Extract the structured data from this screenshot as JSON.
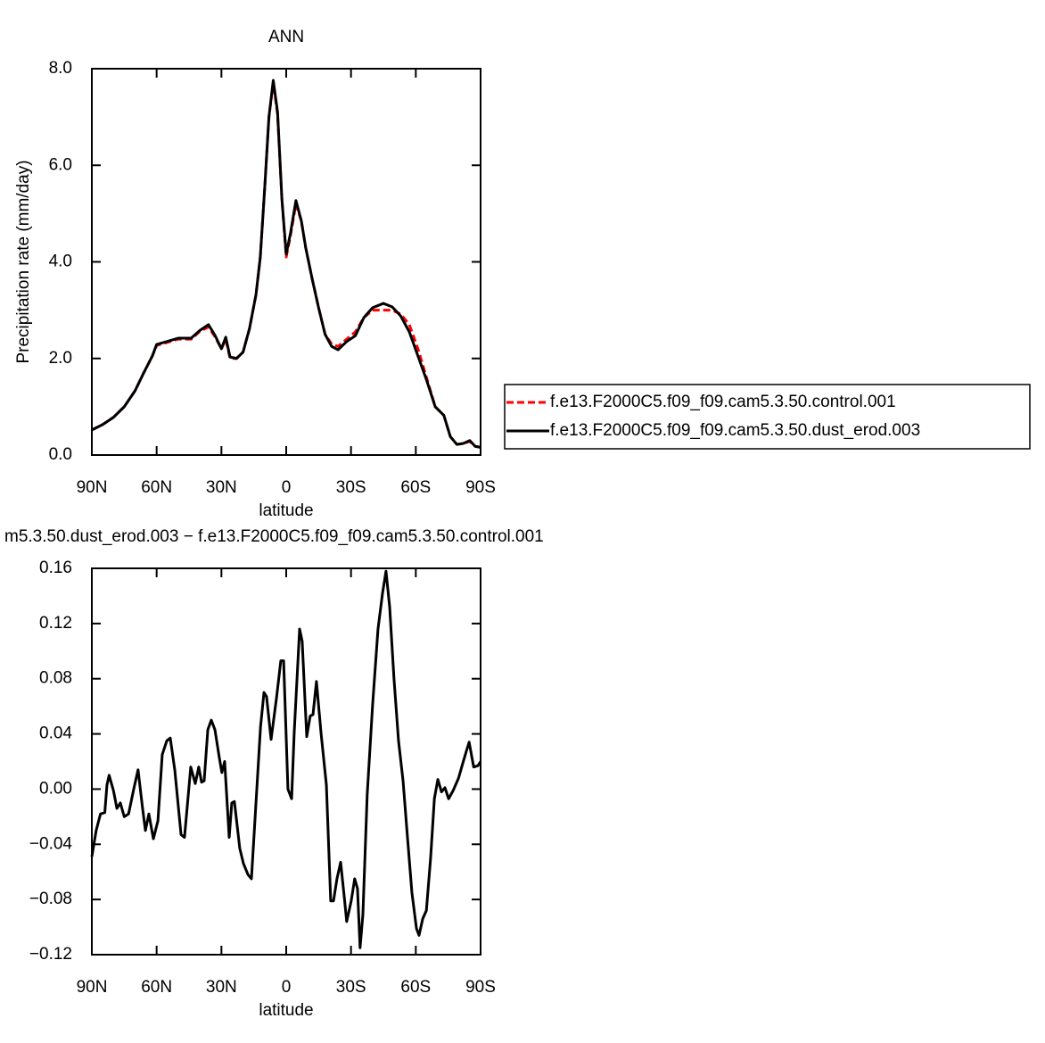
{
  "chart_data": [
    {
      "type": "line",
      "title": "ANN",
      "x_label": "latitude",
      "y_label": "Precipitation rate (mm/day)",
      "x": [
        90,
        85,
        80,
        75,
        70,
        66,
        62,
        60,
        56,
        50,
        44,
        40,
        36,
        33,
        30,
        28,
        26,
        23,
        20,
        17,
        14,
        12,
        10,
        8,
        6,
        4,
        2,
        0,
        -2,
        -4.5,
        -7,
        -9,
        -12,
        -15,
        -18,
        -21,
        -24,
        -28,
        -32,
        -36,
        -40,
        -45,
        -49,
        -53,
        -57,
        -61,
        -65,
        -69,
        -73,
        -76,
        -79,
        -82,
        -85,
        -87.5,
        -90
      ],
      "series": [
        {
          "name": "f.e13.F2000C5.f09_f09.cam5.3.50.control.001",
          "color": "#ff0000",
          "dashed": true,
          "values": [
            0.52,
            0.63,
            0.78,
            1.0,
            1.33,
            1.7,
            2.05,
            2.27,
            2.32,
            2.4,
            2.4,
            2.56,
            2.65,
            2.45,
            2.2,
            2.4,
            2.0,
            2.0,
            2.13,
            2.62,
            3.32,
            4.1,
            5.5,
            7.0,
            7.72,
            7.05,
            5.3,
            4.1,
            4.55,
            5.2,
            4.85,
            4.3,
            3.65,
            3.05,
            2.5,
            2.3,
            2.25,
            2.4,
            2.55,
            2.85,
            3.0,
            3.0,
            3.0,
            2.92,
            2.7,
            2.2,
            1.6,
            1.0,
            0.82,
            0.38,
            0.22,
            0.24,
            0.28,
            0.18,
            0.16
          ]
        },
        {
          "name": "f.e13.F2000C5.f09_f09.cam5.3.50.dust_erod.003",
          "color": "#000000",
          "dashed": false,
          "values": [
            0.52,
            0.63,
            0.78,
            1.0,
            1.33,
            1.7,
            2.05,
            2.29,
            2.34,
            2.42,
            2.42,
            2.58,
            2.7,
            2.48,
            2.2,
            2.44,
            2.03,
            2.0,
            2.13,
            2.62,
            3.32,
            4.1,
            5.5,
            7.0,
            7.76,
            7.1,
            5.3,
            4.16,
            4.6,
            5.27,
            4.85,
            4.3,
            3.65,
            3.05,
            2.5,
            2.25,
            2.18,
            2.35,
            2.47,
            2.85,
            3.05,
            3.14,
            3.07,
            2.88,
            2.55,
            2.05,
            1.55,
            1.0,
            0.82,
            0.38,
            0.22,
            0.24,
            0.3,
            0.18,
            0.16
          ]
        }
      ],
      "xlim": [
        90,
        -90
      ],
      "xticks": [
        {
          "value": 90,
          "label": "90N"
        },
        {
          "value": 60,
          "label": "60N"
        },
        {
          "value": 30,
          "label": "30N"
        },
        0,
        {
          "value": -30,
          "label": "30S"
        },
        {
          "value": -60,
          "label": "60S"
        },
        {
          "value": -90,
          "label": "90S"
        }
      ],
      "ylim": [
        0,
        8
      ],
      "yticks": [
        {
          "value": 0,
          "label": "0.0"
        },
        {
          "value": 2,
          "label": "2.0"
        },
        {
          "value": 4,
          "label": "4.0"
        },
        {
          "value": 6,
          "label": "6.0"
        },
        {
          "value": 8,
          "label": "8.0"
        }
      ],
      "legend": "right"
    },
    {
      "type": "line",
      "title": "m5.3.50.dust_erod.003 − f.e13.F2000C5.f09_f09.cam5.3.50.control.001",
      "x_label": "latitude",
      "x": [
        90,
        88,
        86,
        84,
        83,
        82,
        80,
        78.4,
        76.8,
        75,
        73,
        70.6,
        68.6,
        66.5,
        65.2,
        63.6,
        61.5,
        59.4,
        57.4,
        55.3,
        53.7,
        51.6,
        48.7,
        47.1,
        44.2,
        42.1,
        40.5,
        39.2,
        38,
        36.3,
        34.7,
        33,
        31,
        29.8,
        28.5,
        26.4,
        25.2,
        24,
        21.5,
        19.8,
        17.7,
        16.1,
        14,
        11.9,
        10.3,
        9.1,
        7,
        4.5,
        2.5,
        1.2,
        -0.8,
        -2.5,
        -3.7,
        -6.2,
        -7.4,
        -9.5,
        -11.1,
        -12.4,
        -14,
        -16.1,
        -18.6,
        -20.6,
        -21.9,
        -23.5,
        -25.2,
        -26.8,
        -28,
        -30.1,
        -31.7,
        -33,
        -34.2,
        -35.5,
        -37.5,
        -40,
        -42.5,
        -44.6,
        -46.2,
        -47.9,
        -49.9,
        -52,
        -54.1,
        -56.2,
        -58.2,
        -60.3,
        -61.5,
        -63.2,
        -64.9,
        -66.9,
        -68.6,
        -70.2,
        -71.9,
        -73.5,
        -75.2,
        -77.3,
        -79.8,
        -81.8,
        -83.5,
        -84.7,
        -86.8,
        -88.8,
        -90
      ],
      "series": [
        {
          "color": "#000000",
          "dashed": false,
          "values": [
            -0.049,
            -0.03,
            -0.018,
            -0.017,
            0.003,
            0.01,
            -0.001,
            -0.014,
            -0.01,
            -0.02,
            -0.018,
            0,
            0.014,
            -0.014,
            -0.03,
            -0.018,
            -0.036,
            -0.023,
            0.025,
            0.035,
            0.037,
            0.014,
            -0.033,
            -0.035,
            0.016,
            0.004,
            0.016,
            0.005,
            0.006,
            0.043,
            0.05,
            0.043,
            0.023,
            0.012,
            0.02,
            -0.035,
            -0.01,
            -0.009,
            -0.043,
            -0.054,
            -0.062,
            -0.065,
            -0.01,
            0.045,
            0.07,
            0.067,
            0.036,
            0.066,
            0.093,
            0.093,
            0,
            -0.007,
            0.041,
            0.116,
            0.107,
            0.038,
            0.053,
            0.054,
            0.078,
            0.041,
            0.003,
            -0.081,
            -0.081,
            -0.065,
            -0.053,
            -0.077,
            -0.096,
            -0.081,
            -0.065,
            -0.072,
            -0.115,
            -0.091,
            -0.004,
            0.061,
            0.116,
            0.142,
            0.158,
            0.132,
            0.08,
            0.035,
            0.006,
            -0.036,
            -0.075,
            -0.101,
            -0.106,
            -0.094,
            -0.088,
            -0.049,
            -0.007,
            0.007,
            -0.002,
            0.001,
            -0.007,
            -0.001,
            0.008,
            0.019,
            0.028,
            0.034,
            0.016,
            0.017,
            0.02
          ]
        }
      ],
      "xlim": [
        90,
        -90
      ],
      "xticks": [
        {
          "value": 90,
          "label": "90N"
        },
        {
          "value": 60,
          "label": "60N"
        },
        {
          "value": 30,
          "label": "30N"
        },
        0,
        {
          "value": -30,
          "label": "30S"
        },
        {
          "value": -60,
          "label": "60S"
        },
        {
          "value": -90,
          "label": "90S"
        }
      ],
      "ylim": [
        -0.12,
        0.16
      ],
      "yticks": [
        {
          "value": -0.12,
          "label": "−0.12"
        },
        {
          "value": -0.08,
          "label": "−0.08"
        },
        {
          "value": -0.04,
          "label": "−0.04"
        },
        {
          "value": 0,
          "label": "0.00"
        },
        0.04,
        0.08,
        0.12,
        0.16
      ]
    }
  ]
}
